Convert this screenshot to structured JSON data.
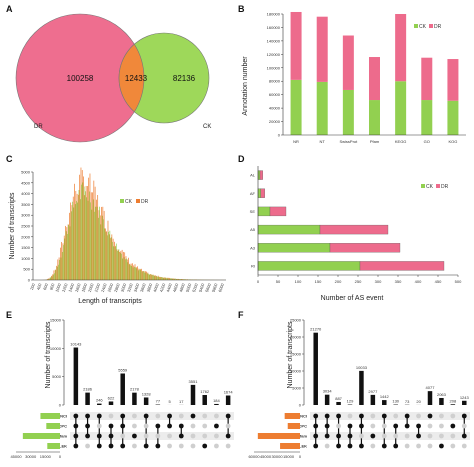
{
  "colors": {
    "ck": "#92d050",
    "dr": "#ed6b8c",
    "venn_overlap": "#f0883a",
    "orange": "#ed7d31",
    "bar": "#111111",
    "dot_off": "#cfcfcf"
  },
  "panel_labels": {
    "a": "A",
    "b": "B",
    "c": "C",
    "d": "D",
    "e": "E",
    "f": "F"
  },
  "chart_data": [
    {
      "panel": "A",
      "type": "venn",
      "sets": [
        {
          "name": "DR",
          "only": 100258
        },
        {
          "name": "CK",
          "only": 82136
        }
      ],
      "overlap": 12433
    },
    {
      "panel": "B",
      "type": "bar",
      "stacked": true,
      "categories": [
        "NR",
        "NT",
        "SwissProt",
        "Pfam",
        "KEGG",
        "GO",
        "KOG"
      ],
      "series": [
        {
          "name": "CK",
          "values": [
            82000,
            79000,
            67000,
            52000,
            80000,
            52000,
            51000
          ]
        },
        {
          "name": "DR",
          "values": [
            101000,
            97000,
            81000,
            64000,
            100000,
            63000,
            62000
          ]
        }
      ],
      "ylabel": "Annotation number",
      "ylim": [
        0,
        180000
      ],
      "yticks": [
        "0",
        "20000",
        "40000",
        "60000",
        "80000",
        "100000",
        "120000",
        "140000",
        "160000",
        "180000"
      ],
      "legend": "top-right",
      "grid": false
    },
    {
      "panel": "C",
      "type": "bar",
      "histogram": true,
      "series": [
        {
          "name": "CK"
        },
        {
          "name": "DR"
        }
      ],
      "xlabel": "Length of transcripts",
      "ylabel": "Number of transcripts",
      "ylim": [
        0,
        5000
      ],
      "yticks": [
        "0",
        "500",
        "1000",
        "1500",
        "2000",
        "2500",
        "3000",
        "3500",
        "4000",
        "4500",
        "5000"
      ],
      "xticks": [
        "200",
        "400",
        "600",
        "800",
        "1000",
        "1200",
        "1400",
        "1600",
        "1800",
        "2000",
        "2200",
        "2400",
        "2600",
        "2800",
        "3000",
        "3200",
        "3400",
        "3600",
        "3800",
        "4000",
        "4200",
        "4400",
        "4600",
        "4800",
        "5000",
        "5200",
        "5400",
        "5600",
        "5800",
        "6000"
      ],
      "legend": "top-center"
    },
    {
      "panel": "D",
      "type": "bar",
      "horizontal": true,
      "stacked": true,
      "categories": [
        "AL",
        "AF",
        "SE",
        "A5",
        "A3",
        "RI"
      ],
      "series": [
        {
          "name": "CK",
          "values": [
            5,
            7,
            30,
            155,
            180,
            255
          ]
        },
        {
          "name": "DR",
          "values": [
            7,
            10,
            40,
            170,
            175,
            210
          ]
        }
      ],
      "xlabel": "Number of AS event",
      "xlim": [
        0,
        500
      ],
      "xticks": [
        "0",
        "50",
        "100",
        "150",
        "200",
        "250",
        "300",
        "350",
        "400",
        "450",
        "500"
      ],
      "legend": "top-right"
    },
    {
      "panel": "E",
      "type": "upset",
      "ylabel": "Number of transcripts",
      "ylim": [
        0,
        15000
      ],
      "yticks": [
        "0",
        "5000",
        "10000",
        "15000"
      ],
      "sets": [
        "CNCI",
        "CPC",
        "Pfam",
        "PLEK"
      ],
      "set_size_scale": [
        "45000",
        "30000",
        "15000",
        "0"
      ],
      "intersections": [
        {
          "value": 10143,
          "label": "10143",
          "members": [
            1,
            1,
            1,
            1
          ]
        },
        {
          "value": 2186,
          "label": "2186",
          "members": [
            1,
            1,
            1,
            0
          ]
        },
        {
          "value": 246,
          "label": "246",
          "members": [
            1,
            0,
            1,
            1
          ]
        },
        {
          "value": 622,
          "label": "622",
          "members": [
            0,
            1,
            1,
            1
          ]
        },
        {
          "value": 5559,
          "label": "5559",
          "members": [
            1,
            1,
            0,
            1
          ]
        },
        {
          "value": 2178,
          "label": "2178",
          "members": [
            0,
            0,
            1,
            0
          ]
        },
        {
          "value": 1328,
          "label": "1328",
          "members": [
            1,
            0,
            0,
            1
          ]
        },
        {
          "value": 77,
          "label": "77",
          "members": [
            0,
            1,
            0,
            1
          ]
        },
        {
          "value": 5,
          "label": "5",
          "members": [
            1,
            1,
            0,
            0
          ]
        },
        {
          "value": 17,
          "label": "17",
          "members": [
            0,
            1,
            1,
            0
          ]
        },
        {
          "value": 3551,
          "label": "3551",
          "members": [
            1,
            0,
            0,
            0
          ]
        },
        {
          "value": 1762,
          "label": "1762",
          "members": [
            0,
            0,
            0,
            1
          ]
        },
        {
          "value": 184,
          "label": "184",
          "members": [
            0,
            1,
            0,
            0
          ]
        },
        {
          "value": 1674,
          "label": "1674",
          "members": [
            1,
            0,
            1,
            0
          ]
        }
      ],
      "set_sizes": [
        20000,
        14000,
        38000,
        13000
      ]
    },
    {
      "panel": "F",
      "type": "upset",
      "ylabel": "Number of transcripts",
      "ylim": [
        0,
        25000
      ],
      "yticks": [
        "0",
        "5000",
        "10000",
        "15000",
        "20000",
        "25000"
      ],
      "sets": [
        "CNCI",
        "CPC",
        "Pfam",
        "PLEK"
      ],
      "set_size_scale": [
        "60000",
        "45000",
        "30000",
        "15000",
        "0"
      ],
      "intersections": [
        {
          "value": 21270,
          "label": "21270",
          "members": [
            1,
            1,
            1,
            1
          ]
        },
        {
          "value": 3034,
          "label": "3034",
          "members": [
            1,
            1,
            1,
            0
          ]
        },
        {
          "value": 887,
          "label": "887",
          "members": [
            1,
            0,
            1,
            1
          ]
        },
        {
          "value": 129,
          "label": "129",
          "members": [
            0,
            1,
            1,
            1
          ]
        },
        {
          "value": 10033,
          "label": "10033",
          "members": [
            1,
            1,
            0,
            1
          ]
        },
        {
          "value": 2977,
          "label": "2977",
          "members": [
            0,
            0,
            1,
            0
          ]
        },
        {
          "value": 1442,
          "label": "1442",
          "members": [
            1,
            0,
            0,
            1
          ]
        },
        {
          "value": 130,
          "label": "130",
          "members": [
            0,
            1,
            0,
            1
          ]
        },
        {
          "value": 73,
          "label": "73",
          "members": [
            1,
            1,
            0,
            0
          ]
        },
        {
          "value": 20,
          "label": "20",
          "members": [
            0,
            1,
            1,
            0
          ]
        },
        {
          "value": 4077,
          "label": "4077",
          "members": [
            1,
            0,
            0,
            0
          ]
        },
        {
          "value": 2063,
          "label": "2063",
          "members": [
            0,
            0,
            0,
            1
          ]
        },
        {
          "value": 208,
          "label": "208",
          "members": [
            0,
            1,
            0,
            0
          ]
        },
        {
          "value": 1243,
          "label": "1243",
          "members": [
            1,
            0,
            1,
            0
          ]
        }
      ],
      "set_sizes": [
        20000,
        16000,
        55000,
        26000
      ]
    }
  ]
}
